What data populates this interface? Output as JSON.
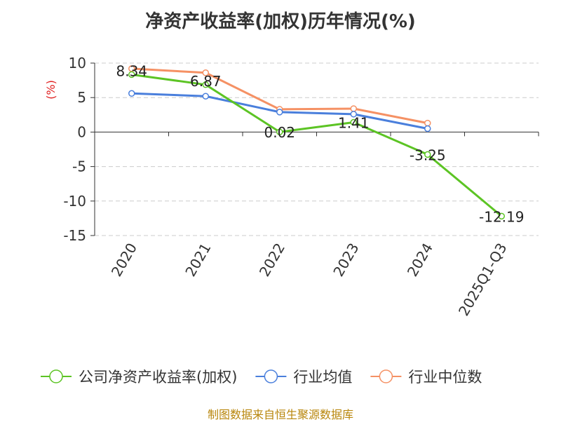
{
  "chart_data": {
    "type": "line",
    "title": "净资产收益率(加权)历年情况(%)",
    "ylabel": "(%)",
    "xlabel": "",
    "categories": [
      "2020",
      "2021",
      "2022",
      "2023",
      "2024",
      "2025Q1-Q3"
    ],
    "ylim": [
      -15,
      10
    ],
    "yticks": [
      10,
      5,
      0,
      -5,
      -10,
      -15
    ],
    "grid": true,
    "legend_position": "bottom",
    "series": [
      {
        "name": "公司净资产收益率(加权)",
        "color": "#5cc424",
        "values": [
          8.34,
          6.87,
          0.02,
          1.41,
          -3.25,
          -12.19
        ],
        "labels": [
          "8.34",
          "6.87",
          "0.02",
          "1.41",
          "-3.25",
          "-12.19"
        ]
      },
      {
        "name": "行业均值",
        "color": "#4a7fdc",
        "values": [
          5.6,
          5.2,
          2.9,
          2.6,
          0.5,
          null
        ]
      },
      {
        "name": "行业中位数",
        "color": "#f59164",
        "values": [
          9.2,
          8.6,
          3.3,
          3.4,
          1.3,
          null
        ]
      }
    ]
  },
  "footer": {
    "source": "制图数据来自恒生聚源数据库"
  }
}
